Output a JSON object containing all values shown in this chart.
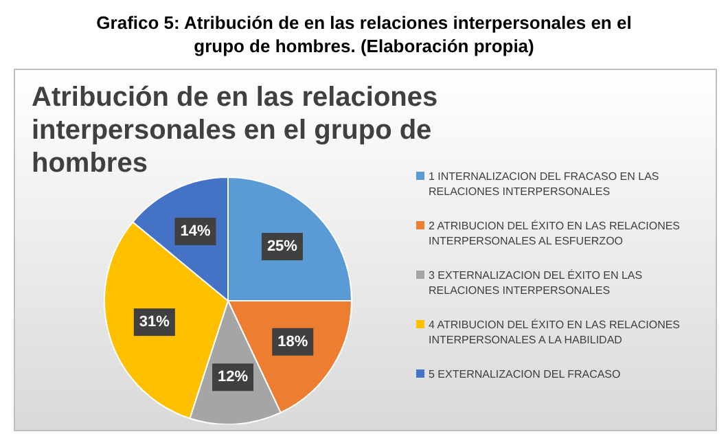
{
  "chart_data": {
    "type": "pie",
    "title": "Grafico 5: Atribución de en las relaciones interpersonales en el grupo de hombres. (Elaboración propia)",
    "subtitle": "Atribución de en las relaciones interpersonales en el grupo de hombres",
    "categories": [
      "1 INTERNALIZACION DEL FRACASO EN LAS RELACIONES INTERPERSONALES",
      "2  ATRIBUCION DEL ÉXITO EN LAS RELACIONES INTERPERSONALES AL ESFUERZOO",
      "3  EXTERNALIZACION DEL ÉXITO EN LAS RELACIONES INTERPERSONALES",
      "4  ATRIBUCION DEL ÉXITO EN LAS RELACIONES INTERPERSONALES A LA HABILIDAD",
      "5  EXTERNALIZACION DEL FRACASO"
    ],
    "values": [
      25,
      18,
      12,
      31,
      14
    ],
    "colors": [
      "#5b9bd5",
      "#ed7d31",
      "#a5a5a5",
      "#ffc000",
      "#4472c4"
    ],
    "value_labels": [
      "25%",
      "18%",
      "12%",
      "31%",
      "14%"
    ],
    "legend": "right"
  }
}
